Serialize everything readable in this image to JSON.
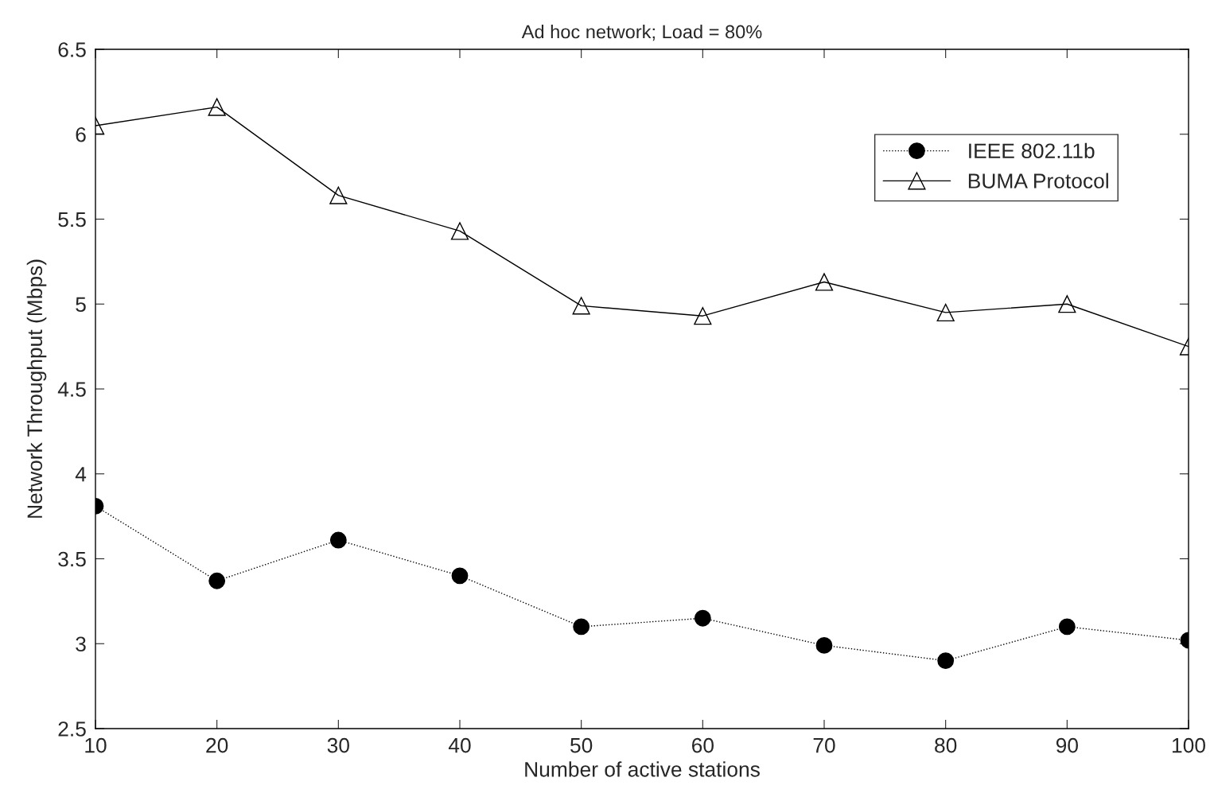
{
  "chart_data": {
    "type": "line",
    "title": "Ad hoc network; Load = 80%",
    "xlabel": "Number of active stations",
    "ylabel": "Network Throughput (Mbps)",
    "x": [
      10,
      20,
      30,
      40,
      50,
      60,
      70,
      80,
      90,
      100
    ],
    "series": [
      {
        "name": "IEEE 802.11b",
        "color": "#000000",
        "marker": "circle",
        "line_style": "dotted",
        "values": [
          3.81,
          3.37,
          3.61,
          3.4,
          3.1,
          3.15,
          2.99,
          2.9,
          3.1,
          3.02
        ]
      },
      {
        "name": "BUMA Protocol",
        "color": "#000000",
        "marker": "triangle",
        "line_style": "solid",
        "values": [
          6.05,
          6.16,
          5.64,
          5.43,
          4.99,
          4.93,
          5.13,
          4.95,
          5.0,
          4.75
        ]
      }
    ],
    "xlim": [
      10,
      100
    ],
    "xticks": [
      10,
      20,
      30,
      40,
      50,
      60,
      70,
      80,
      90,
      100
    ],
    "ylim": [
      2.5,
      6.5
    ],
    "yticks": [
      2.5,
      3,
      3.5,
      4,
      4.5,
      5,
      5.5,
      6,
      6.5
    ],
    "grid": false,
    "legend": "top right"
  }
}
